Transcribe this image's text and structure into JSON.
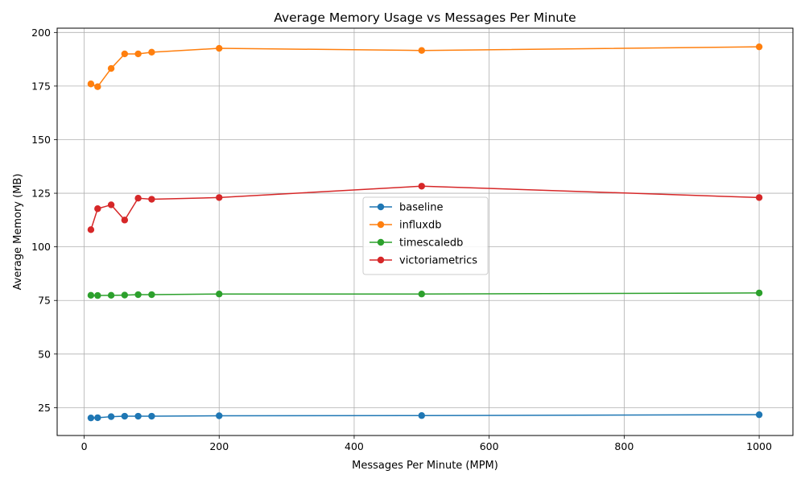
{
  "chart_data": {
    "type": "line",
    "title": "Average Memory Usage vs Messages Per Minute",
    "xlabel": "Messages Per Minute (MPM)",
    "ylabel": "Average Memory (MB)",
    "xlim": [
      -40,
      1050
    ],
    "ylim": [
      12,
      202
    ],
    "xticks": [
      0,
      200,
      400,
      600,
      800,
      1000
    ],
    "yticks": [
      25,
      50,
      75,
      100,
      125,
      150,
      175,
      200
    ],
    "grid": true,
    "legend_position": "center",
    "x": [
      10,
      20,
      40,
      60,
      80,
      100,
      200,
      500,
      1000
    ],
    "series": [
      {
        "name": "baseline",
        "color": "#1f77b4",
        "values": [
          20.2,
          20.3,
          20.8,
          21.0,
          21.0,
          21.0,
          21.2,
          21.3,
          21.7
        ]
      },
      {
        "name": "influxdb",
        "color": "#ff7f0e",
        "values": [
          176.0,
          174.7,
          183.2,
          190.0,
          190.0,
          190.8,
          192.6,
          191.6,
          193.3
        ]
      },
      {
        "name": "timescaledb",
        "color": "#2ca02c",
        "values": [
          77.4,
          77.3,
          77.4,
          77.5,
          77.7,
          77.7,
          78.0,
          78.0,
          78.5
        ]
      },
      {
        "name": "victoriametrics",
        "color": "#d62728",
        "values": [
          108.0,
          117.8,
          119.6,
          112.5,
          122.7,
          122.2,
          123.0,
          128.3,
          123.0
        ]
      }
    ]
  }
}
